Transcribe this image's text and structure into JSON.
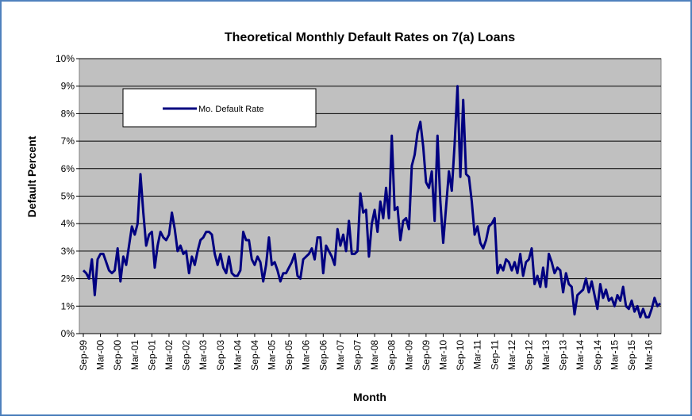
{
  "chart_data": {
    "type": "line",
    "title": "Theoretical Monthly Default Rates on 7(a) Loans",
    "x_label": "Month",
    "y_label": "Default Percent",
    "categories": [
      "Sep-99",
      null,
      null,
      null,
      null,
      null,
      "Mar-00",
      null,
      null,
      null,
      null,
      null,
      "Sep-00",
      null,
      null,
      null,
      null,
      null,
      "Mar-01",
      null,
      null,
      null,
      null,
      null,
      "Sep-01",
      null,
      null,
      null,
      null,
      null,
      "Mar-02",
      null,
      null,
      null,
      null,
      null,
      "Sep-02",
      null,
      null,
      null,
      null,
      null,
      "Mar-03",
      null,
      null,
      null,
      null,
      null,
      "Sep-03",
      null,
      null,
      null,
      null,
      null,
      "Mar-04",
      null,
      null,
      null,
      null,
      null,
      "Sep-04",
      null,
      null,
      null,
      null,
      null,
      "Mar-05",
      null,
      null,
      null,
      null,
      null,
      "Sep-05",
      null,
      null,
      null,
      null,
      null,
      "Mar-06",
      null,
      null,
      null,
      null,
      null,
      "Sep-06",
      null,
      null,
      null,
      null,
      null,
      "Mar-07",
      null,
      null,
      null,
      null,
      null,
      "Sep-07",
      null,
      null,
      null,
      null,
      null,
      "Mar-08",
      null,
      null,
      null,
      null,
      null,
      "Sep-08",
      null,
      null,
      null,
      null,
      null,
      "Mar-09",
      null,
      null,
      null,
      null,
      null,
      "Sep-09",
      null,
      null,
      null,
      null,
      null,
      "Mar-10",
      null,
      null,
      null,
      null,
      null,
      "Sep-10",
      null,
      null,
      null,
      null,
      null,
      "Mar-11",
      null,
      null,
      null,
      null,
      null,
      "Sep-11",
      null,
      null,
      null,
      null,
      null,
      "Mar-12",
      null,
      null,
      null,
      null,
      null,
      "Sep-12",
      null,
      null,
      null,
      null,
      null,
      "Mar-13",
      null,
      null,
      null,
      null,
      null,
      "Sep-13",
      null,
      null,
      null,
      null,
      null,
      "Mar-14",
      null,
      null,
      null,
      null,
      null,
      "Sep-14",
      null,
      null,
      null,
      null,
      null,
      "Mar-15",
      null,
      null,
      null,
      null,
      null,
      "Sep-15",
      null,
      null,
      null,
      null,
      null,
      "Mar-16",
      null,
      null,
      null,
      null
    ],
    "series": [
      {
        "name": "Mo. Default Rate",
        "color": "#000080",
        "values": [
          2.3,
          2.2,
          2.0,
          2.7,
          1.4,
          2.7,
          2.9,
          2.9,
          2.6,
          2.3,
          2.2,
          2.3,
          3.1,
          1.9,
          2.8,
          2.5,
          3.2,
          3.9,
          3.6,
          4.0,
          5.8,
          4.4,
          3.2,
          3.6,
          3.7,
          2.4,
          3.2,
          3.7,
          3.5,
          3.4,
          3.6,
          4.4,
          3.8,
          3.0,
          3.2,
          2.9,
          3.0,
          2.2,
          2.8,
          2.5,
          3.0,
          3.4,
          3.5,
          3.7,
          3.7,
          3.6,
          2.9,
          2.5,
          2.9,
          2.4,
          2.2,
          2.8,
          2.2,
          2.1,
          2.1,
          2.3,
          3.7,
          3.4,
          3.4,
          2.7,
          2.5,
          2.8,
          2.6,
          1.9,
          2.5,
          3.5,
          2.5,
          2.6,
          2.3,
          1.9,
          2.2,
          2.2,
          2.4,
          2.6,
          2.9,
          2.1,
          2.0,
          2.7,
          2.8,
          2.9,
          3.1,
          2.7,
          3.5,
          3.5,
          2.2,
          3.2,
          3.0,
          2.8,
          2.5,
          3.8,
          3.2,
          3.6,
          3.0,
          4.1,
          2.9,
          2.9,
          3.0,
          5.1,
          4.4,
          4.5,
          2.8,
          4.0,
          4.5,
          3.7,
          4.8,
          4.2,
          5.3,
          4.2,
          7.2,
          4.5,
          4.6,
          3.4,
          4.1,
          4.2,
          3.8,
          6.1,
          6.5,
          7.3,
          7.7,
          6.8,
          5.5,
          5.3,
          5.9,
          4.1,
          7.2,
          4.8,
          3.3,
          4.6,
          5.9,
          5.2,
          6.9,
          9.0,
          5.7,
          8.5,
          5.8,
          5.7,
          4.8,
          3.6,
          3.9,
          3.3,
          3.1,
          3.4,
          3.9,
          4.0,
          4.2,
          2.2,
          2.5,
          2.3,
          2.7,
          2.6,
          2.3,
          2.6,
          2.2,
          2.9,
          2.1,
          2.6,
          2.7,
          3.1,
          1.8,
          2.1,
          1.7,
          2.4,
          1.7,
          2.9,
          2.6,
          2.2,
          2.4,
          2.3,
          1.5,
          2.2,
          1.8,
          1.7,
          0.7,
          1.4,
          1.5,
          1.6,
          2.0,
          1.5,
          1.9,
          1.4,
          0.9,
          1.8,
          1.3,
          1.6,
          1.2,
          1.3,
          1.0,
          1.4,
          1.2,
          1.7,
          1.0,
          0.9,
          1.2,
          0.8,
          1.0,
          0.6,
          0.9,
          0.6,
          0.6,
          0.9,
          1.3,
          1.0,
          1.1
        ]
      }
    ],
    "ylim": [
      0,
      10
    ],
    "yticks": [
      {
        "value": 0,
        "label": "0%"
      },
      {
        "value": 1,
        "label": "1%"
      },
      {
        "value": 2,
        "label": "2%"
      },
      {
        "value": 3,
        "label": "3%"
      },
      {
        "value": 4,
        "label": "4%"
      },
      {
        "value": 5,
        "label": "5%"
      },
      {
        "value": 6,
        "label": "6%"
      },
      {
        "value": 7,
        "label": "7%"
      },
      {
        "value": 8,
        "label": "8%"
      },
      {
        "value": 9,
        "label": "9%"
      },
      {
        "value": 10,
        "label": "10%"
      }
    ],
    "grid": true,
    "legend": "upper left"
  }
}
